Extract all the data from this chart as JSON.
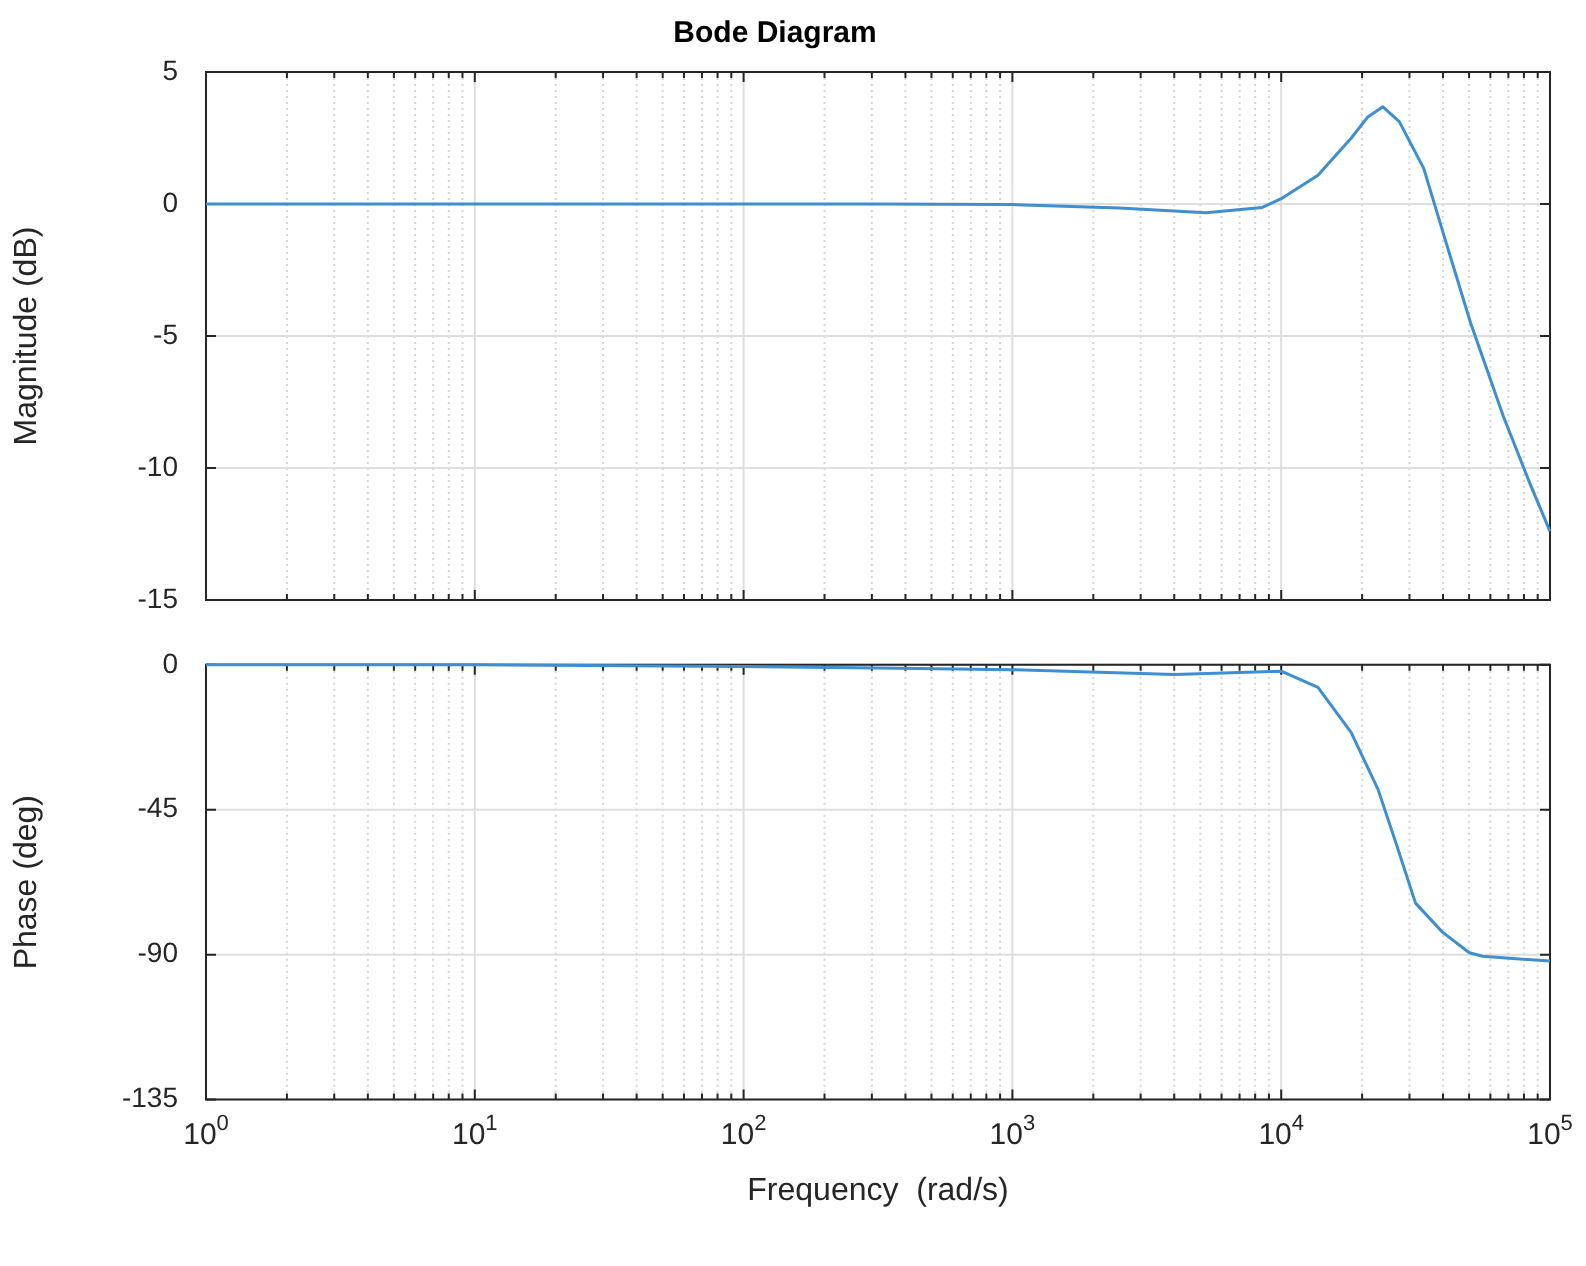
{
  "chart_data": [
    {
      "type": "line",
      "title": "Bode Diagram",
      "ylabel": "Magnitude (dB)",
      "x": [
        1,
        10,
        100,
        316,
        1000,
        2500,
        5250,
        8500,
        10000,
        13700,
        18200,
        21000,
        23900,
        27500,
        33900,
        40300,
        50600,
        67100,
        84300,
        100000
      ],
      "series": [
        {
          "color": "#3d8fd1",
          "values": [
            0,
            0,
            0,
            0,
            -0.02,
            -0.15,
            -0.33,
            -0.13,
            0.2,
            1.09,
            2.49,
            3.3,
            3.68,
            3.12,
            1.35,
            -1.19,
            -4.49,
            -8.05,
            -10.6,
            -12.4
          ]
        }
      ],
      "xlim": [
        1,
        100000
      ],
      "ylim": [
        -15,
        5
      ],
      "xticks": [
        {
          "value": 1,
          "label": null
        },
        {
          "value": 2,
          "label": null
        },
        {
          "value": 3,
          "label": null
        },
        {
          "value": 4,
          "label": null
        },
        {
          "value": 5,
          "label": null
        },
        {
          "value": 6,
          "label": null
        },
        {
          "value": 7,
          "label": null
        },
        {
          "value": 8,
          "label": null
        },
        {
          "value": 9,
          "label": null
        },
        {
          "value": 10,
          "label": null
        },
        {
          "value": 20,
          "label": null
        },
        {
          "value": 30,
          "label": null
        },
        {
          "value": 40,
          "label": null
        },
        {
          "value": 50,
          "label": null
        },
        {
          "value": 60,
          "label": null
        },
        {
          "value": 70,
          "label": null
        },
        {
          "value": 80,
          "label": null
        },
        {
          "value": 90,
          "label": null
        },
        {
          "value": 100,
          "label": null
        },
        {
          "value": 200,
          "label": null
        },
        {
          "value": 300,
          "label": null
        },
        {
          "value": 400,
          "label": null
        },
        {
          "value": 500,
          "label": null
        },
        {
          "value": 600,
          "label": null
        },
        {
          "value": 700,
          "label": null
        },
        {
          "value": 800,
          "label": null
        },
        {
          "value": 900,
          "label": null
        },
        {
          "value": 1000,
          "label": null
        },
        {
          "value": 2000,
          "label": null
        },
        {
          "value": 3000,
          "label": null
        },
        {
          "value": 4000,
          "label": null
        },
        {
          "value": 5000,
          "label": null
        },
        {
          "value": 6000,
          "label": null
        },
        {
          "value": 7000,
          "label": null
        },
        {
          "value": 8000,
          "label": null
        },
        {
          "value": 9000,
          "label": null
        },
        {
          "value": 10000,
          "label": null
        },
        {
          "value": 20000,
          "label": null
        },
        {
          "value": 30000,
          "label": null
        },
        {
          "value": 40000,
          "label": null
        },
        {
          "value": 50000,
          "label": null
        },
        {
          "value": 60000,
          "label": null
        },
        {
          "value": 70000,
          "label": null
        },
        {
          "value": 80000,
          "label": null
        },
        {
          "value": 90000,
          "label": null
        },
        {
          "value": 100000,
          "label": null
        }
      ],
      "yticks": [
        -15,
        -10,
        -5,
        0,
        5
      ],
      "log": "x",
      "grid": true,
      "tick_labels": "y",
      "marker": "none",
      "line_style": "solid"
    },
    {
      "type": "line",
      "ylabel": "Phase (deg)",
      "xlabel": "Frequency  (rad/s)",
      "x": [
        1,
        10,
        100,
        316,
        1000,
        4000,
        10000,
        13700,
        18200,
        22900,
        26900,
        31600,
        39800,
        50100,
        56200,
        100000
      ],
      "series": [
        {
          "color": "#3d8fd1",
          "values": [
            0,
            0,
            -0.5,
            -1,
            -1.5,
            -3,
            -2,
            -7,
            -21,
            -38.6,
            -56,
            -74,
            -83,
            -89.4,
            -90.5,
            -92
          ]
        }
      ],
      "xlim": [
        1,
        100000
      ],
      "ylim": [
        -135,
        0
      ],
      "xticks": [
        {
          "value": 1,
          "label": "10$^{0}$"
        },
        {
          "value": 2,
          "label": null
        },
        {
          "value": 3,
          "label": null
        },
        {
          "value": 4,
          "label": null
        },
        {
          "value": 5,
          "label": null
        },
        {
          "value": 6,
          "label": null
        },
        {
          "value": 7,
          "label": null
        },
        {
          "value": 8,
          "label": null
        },
        {
          "value": 9,
          "label": null
        },
        {
          "value": 10,
          "label": "10$^{1}$"
        },
        {
          "value": 20,
          "label": null
        },
        {
          "value": 30,
          "label": null
        },
        {
          "value": 40,
          "label": null
        },
        {
          "value": 50,
          "label": null
        },
        {
          "value": 60,
          "label": null
        },
        {
          "value": 70,
          "label": null
        },
        {
          "value": 80,
          "label": null
        },
        {
          "value": 90,
          "label": null
        },
        {
          "value": 100,
          "label": "10$^{2}$"
        },
        {
          "value": 200,
          "label": null
        },
        {
          "value": 300,
          "label": null
        },
        {
          "value": 400,
          "label": null
        },
        {
          "value": 500,
          "label": null
        },
        {
          "value": 600,
          "label": null
        },
        {
          "value": 700,
          "label": null
        },
        {
          "value": 800,
          "label": null
        },
        {
          "value": 900,
          "label": null
        },
        {
          "value": 1000,
          "label": "10$^{3}$"
        },
        {
          "value": 2000,
          "label": null
        },
        {
          "value": 3000,
          "label": null
        },
        {
          "value": 4000,
          "label": null
        },
        {
          "value": 5000,
          "label": null
        },
        {
          "value": 6000,
          "label": null
        },
        {
          "value": 7000,
          "label": null
        },
        {
          "value": 8000,
          "label": null
        },
        {
          "value": 9000,
          "label": null
        },
        {
          "value": 10000,
          "label": "10$^{4}$"
        },
        {
          "value": 20000,
          "label": null
        },
        {
          "value": 30000,
          "label": null
        },
        {
          "value": 40000,
          "label": null
        },
        {
          "value": 50000,
          "label": null
        },
        {
          "value": 60000,
          "label": null
        },
        {
          "value": 70000,
          "label": null
        },
        {
          "value": 80000,
          "label": null
        },
        {
          "value": 90000,
          "label": null
        },
        {
          "value": 100000,
          "label": "10$^{5}$"
        }
      ],
      "yticks": [
        -135,
        -90,
        -45,
        0
      ],
      "log": "x",
      "grid": true,
      "marker": "none",
      "line_style": "solid"
    }
  ]
}
